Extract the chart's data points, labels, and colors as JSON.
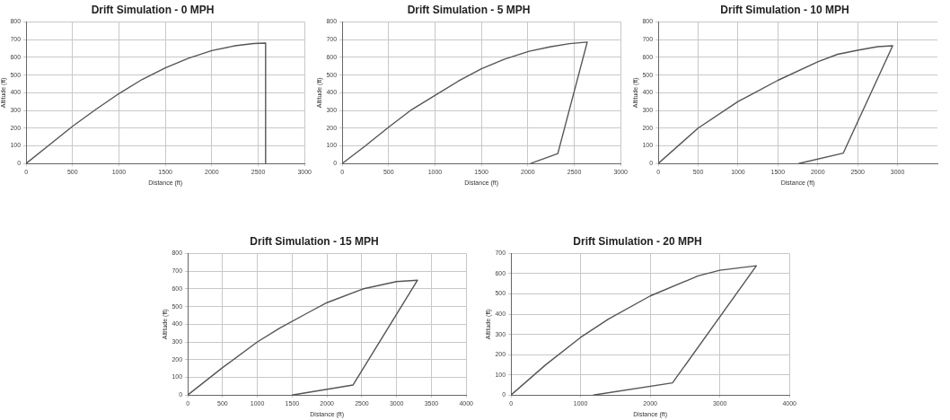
{
  "chart_data": [
    {
      "type": "line",
      "title": "Drift Simulation - 0 MPH",
      "xlabel": "Distance (ft)",
      "ylabel": "Altitude (ft)",
      "xlim": [
        0,
        3000
      ],
      "xticks": [
        0,
        500,
        1000,
        1500,
        2000,
        2500,
        3000
      ],
      "ylim": [
        0,
        800
      ],
      "yticks": [
        0,
        100,
        200,
        300,
        400,
        500,
        600,
        700,
        800
      ],
      "grid": true,
      "legend": false,
      "marker": "none",
      "line_style": "solid",
      "series": [
        {
          "color": "#555555",
          "x": [
            0,
            250,
            500,
            750,
            1000,
            1250,
            1500,
            1750,
            2000,
            2250,
            2450,
            2580,
            2580
          ],
          "values": [
            0,
            105,
            210,
            305,
            395,
            475,
            540,
            595,
            638,
            665,
            678,
            680,
            0
          ]
        }
      ]
    },
    {
      "type": "line",
      "title": "Drift Simulation - 5 MPH",
      "xlabel": "Distance (ft)",
      "ylabel": "Altitude (ft)",
      "xlim": [
        0,
        3000
      ],
      "xticks": [
        0,
        500,
        1000,
        1500,
        2000,
        2500,
        3000
      ],
      "ylim": [
        0,
        800
      ],
      "yticks": [
        0,
        100,
        200,
        300,
        400,
        500,
        600,
        700,
        800
      ],
      "grid": true,
      "legend": false,
      "marker": "none",
      "line_style": "solid",
      "series": [
        {
          "color": "#555555",
          "x": [
            0,
            250,
            500,
            750,
            1054,
            1250,
            1500,
            1750,
            2014,
            2250,
            2450,
            2640,
            2323,
            2030
          ],
          "values": [
            0,
            100,
            205,
            305,
            402,
            465,
            535,
            590,
            634,
            660,
            677,
            686,
            56,
            0
          ]
        }
      ]
    },
    {
      "type": "line",
      "title": "Drift Simulation - 10 MPH",
      "xlabel": "Distance (ft)",
      "ylabel": "Altitude (ft)",
      "xlim": [
        0,
        3500
      ],
      "xticks": [
        0,
        500,
        1000,
        1500,
        2000,
        2500,
        3000
      ],
      "ylim": [
        0,
        800
      ],
      "yticks": [
        0,
        100,
        200,
        300,
        400,
        500,
        600,
        700,
        800
      ],
      "grid": true,
      "legend": false,
      "marker": "none",
      "line_style": "solid",
      "series": [
        {
          "color": "#555555",
          "x": [
            0,
            500,
            1000,
            1187,
            1500,
            2000,
            2248,
            2500,
            2750,
            2939,
            2320,
            1759
          ],
          "values": [
            0,
            200,
            350,
            394,
            470,
            575,
            617,
            640,
            660,
            665,
            59,
            0
          ]
        }
      ]
    },
    {
      "type": "line",
      "title": "Drift Simulation - 15 MPH",
      "xlabel": "Distance (ft)",
      "ylabel": "Altitude (ft)",
      "xlim": [
        0,
        4000
      ],
      "xticks": [
        0,
        500,
        1000,
        1500,
        2000,
        2500,
        3000,
        3500,
        4000
      ],
      "ylim": [
        0,
        800
      ],
      "yticks": [
        0,
        100,
        200,
        300,
        400,
        500,
        600,
        700,
        800
      ],
      "grid": true,
      "legend": false,
      "marker": "none",
      "line_style": "solid",
      "series": [
        {
          "color": "#555555",
          "x": [
            0,
            500,
            1000,
            1321,
            1750,
            2000,
            2512,
            3000,
            3301,
            2375,
            1495
          ],
          "values": [
            0,
            155,
            300,
            378,
            470,
            522,
            599,
            641,
            649,
            57,
            0
          ]
        }
      ]
    },
    {
      "type": "line",
      "title": "Drift Simulation - 20 MPH",
      "xlabel": "Distance (ft)",
      "ylabel": "Altitude (ft)",
      "xlim": [
        0,
        4000
      ],
      "xticks": [
        0,
        1000,
        2000,
        3000,
        4000
      ],
      "ylim": [
        0,
        700
      ],
      "yticks": [
        0,
        100,
        200,
        300,
        400,
        500,
        600,
        700
      ],
      "grid": true,
      "legend": false,
      "marker": "none",
      "line_style": "solid",
      "series": [
        {
          "color": "#555555",
          "x": [
            0,
            500,
            1000,
            1398,
            2000,
            2689,
            3000,
            3525,
            2320,
            1180
          ],
          "values": [
            0,
            150,
            285,
            375,
            490,
            589,
            617,
            639,
            60,
            0
          ]
        }
      ]
    }
  ]
}
